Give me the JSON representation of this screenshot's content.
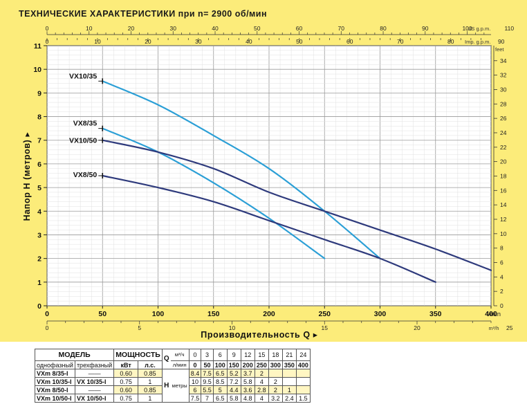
{
  "chart_data": {
    "type": "line",
    "title": "ТЕХНИЧЕСКИЕ ХАРАКТЕРИСТИКИ при n= 2900 об/мин",
    "xlabel": "Производительность Q",
    "ylabel": "Напор H (метров)",
    "x_unit": "l/min",
    "xlim": [
      0,
      400
    ],
    "ylim": [
      0,
      11
    ],
    "x_ticks": [
      0,
      50,
      100,
      150,
      200,
      250,
      300,
      350,
      400
    ],
    "y_ticks": [
      0,
      1,
      2,
      3,
      4,
      5,
      6,
      7,
      8,
      9,
      10,
      11
    ],
    "secondary_axes": {
      "bottom_m3h": {
        "unit": "m³/h",
        "ticks": [
          0,
          5,
          10,
          15,
          20,
          25
        ]
      },
      "top_us_gpm": {
        "unit": "US g.p.m.",
        "ticks": [
          0,
          10,
          20,
          30,
          40,
          50,
          60,
          70,
          80,
          90,
          100,
          110
        ]
      },
      "top_imp_gpm": {
        "unit": "Imp. g.p.m.",
        "ticks": [
          0,
          10,
          20,
          30,
          40,
          50,
          60,
          70,
          80,
          90
        ]
      },
      "right_feet": {
        "unit": "feet",
        "ticks": [
          0,
          2,
          4,
          6,
          8,
          10,
          12,
          14,
          16,
          18,
          20,
          22,
          24,
          26,
          28,
          30,
          32,
          34
        ]
      }
    },
    "series": [
      {
        "name": "VX10/35",
        "color": "#2b9fd6",
        "x": [
          50,
          100,
          150,
          200,
          250,
          300
        ],
        "y": [
          9.5,
          8.5,
          7.2,
          5.8,
          4.0,
          2.0
        ]
      },
      {
        "name": "VX8/35",
        "color": "#2b9fd6",
        "x": [
          50,
          100,
          150,
          200,
          250
        ],
        "y": [
          7.5,
          6.5,
          5.2,
          3.7,
          2.0
        ]
      },
      {
        "name": "VX10/50",
        "color": "#2e3a7c",
        "x": [
          50,
          100,
          150,
          200,
          250,
          300,
          350,
          400
        ],
        "y": [
          7.0,
          6.5,
          5.8,
          4.8,
          4.0,
          3.2,
          2.4,
          1.5
        ]
      },
      {
        "name": "VX8/50",
        "color": "#2e3a7c",
        "x": [
          50,
          100,
          150,
          200,
          250,
          300,
          350
        ],
        "y": [
          5.5,
          5.0,
          4.4,
          3.6,
          2.8,
          2.0,
          1.0
        ]
      }
    ]
  },
  "table": {
    "model_header": "МОДЕЛЬ",
    "power_header": "МОЩНОСТЬ",
    "q_label": "Q",
    "h_label": "H",
    "h_unit": "метры",
    "single_phase": "однофазный",
    "three_phase": "трехфазный",
    "kw": "кВт",
    "hp": "л.с.",
    "unit_m3h": "м³/ч",
    "unit_lmin": "л/мин",
    "flow_m3h": [
      "0",
      "3",
      "6",
      "9",
      "12",
      "15",
      "18",
      "21",
      "24"
    ],
    "flow_lmin": [
      "0",
      "50",
      "100",
      "150",
      "200",
      "250",
      "300",
      "350",
      "400"
    ],
    "rows": [
      {
        "single": "VXm 8/35-I",
        "three": "——",
        "kw": "0.60",
        "hp": "0.85",
        "h": [
          "8.4",
          "7.5",
          "6.5",
          "5.2",
          "3.7",
          "2",
          "",
          "",
          ""
        ]
      },
      {
        "single": "VXm 10/35-I",
        "three": "VX 10/35-I",
        "kw": "0.75",
        "hp": "1",
        "h": [
          "10",
          "9.5",
          "8.5",
          "7.2",
          "5.8",
          "4",
          "2",
          "",
          ""
        ]
      },
      {
        "single": "VXm 8/50-I",
        "three": "——",
        "kw": "0.60",
        "hp": "0.85",
        "h": [
          "6",
          "5.5",
          "5",
          "4.4",
          "3.6",
          "2.8",
          "2",
          "1",
          ""
        ]
      },
      {
        "single": "VXm 10/50-I",
        "three": "VX 10/50-I",
        "kw": "0.75",
        "hp": "1",
        "h": [
          "7.5",
          "7",
          "6.5",
          "5.8",
          "4.8",
          "4",
          "3.2",
          "2.4",
          "1.5"
        ]
      }
    ]
  }
}
